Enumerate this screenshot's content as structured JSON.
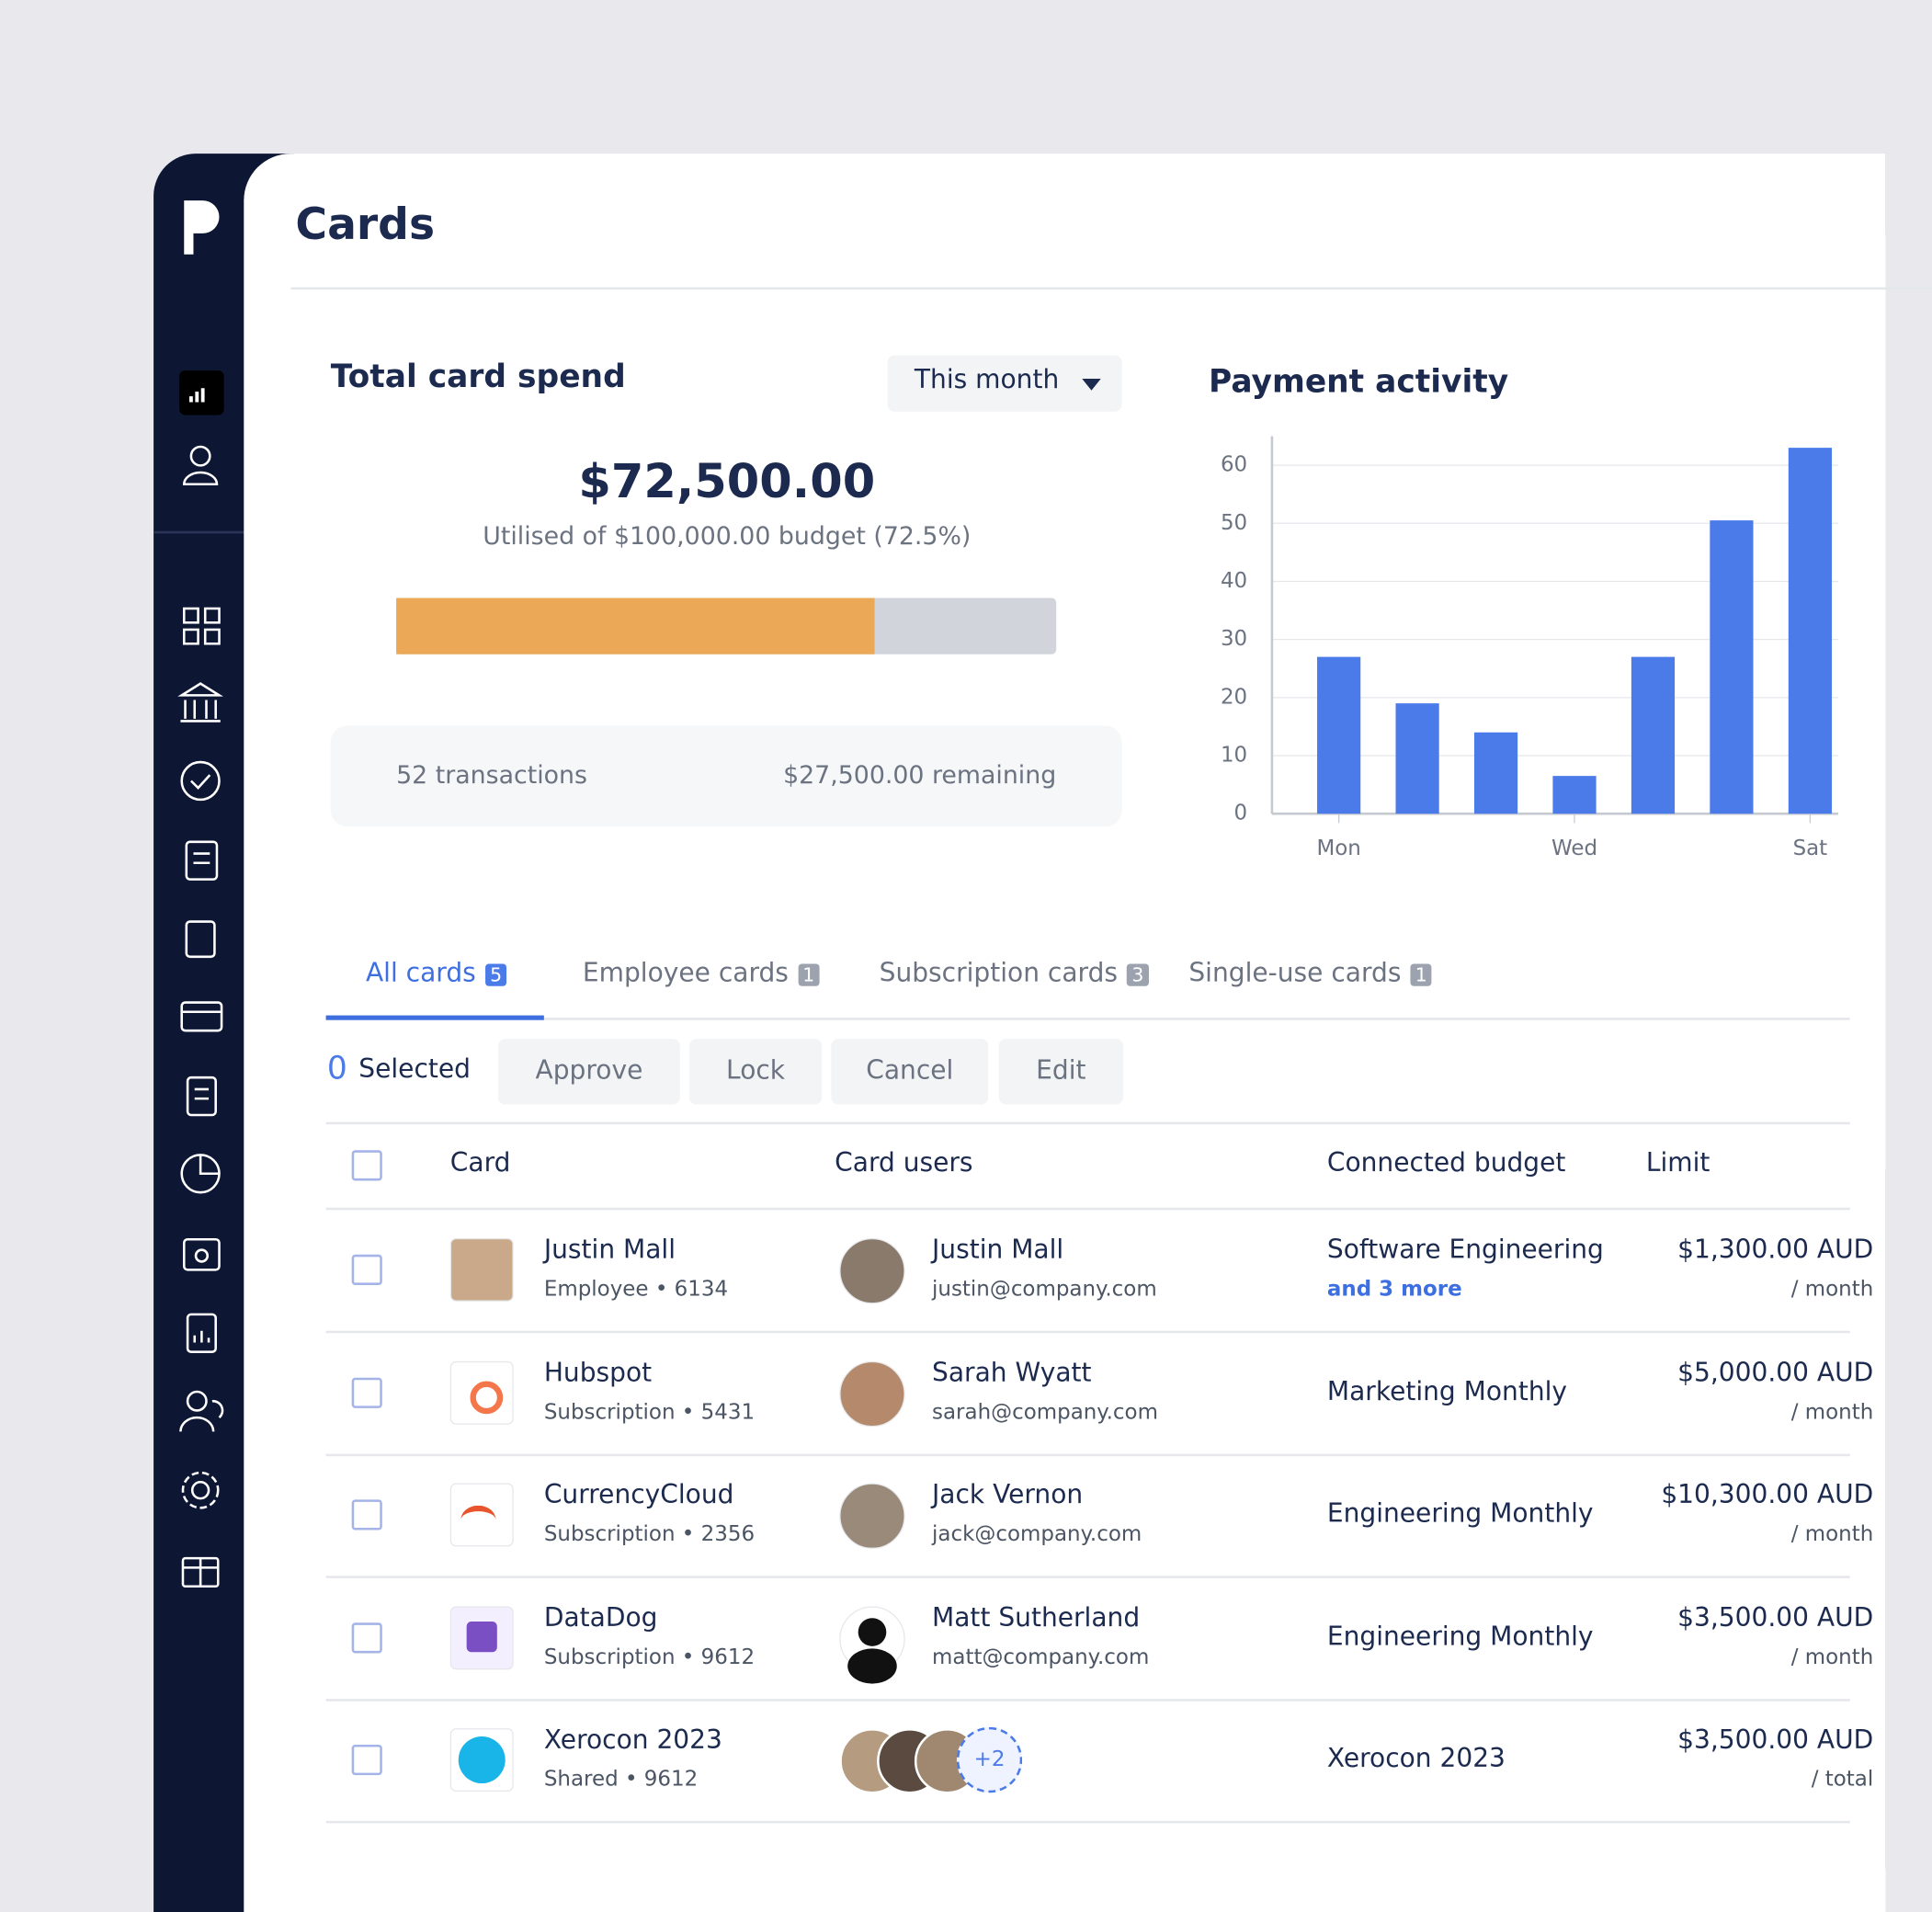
{
  "header": {
    "title": "Cards"
  },
  "spend": {
    "title": "Total card spend",
    "period": "This month",
    "total": "$72,500.00",
    "budget_note": "Utilised of $100,000.00 budget (72.5%)",
    "utilised_percent": 72.5,
    "transactions": "52 transactions",
    "remaining": "$27,500.00 remaining"
  },
  "chart_data": {
    "type": "bar",
    "title": "Payment activity",
    "categories": [
      "Mon",
      null,
      null,
      "Wed",
      null,
      null,
      "Sat"
    ],
    "values": [
      27,
      19,
      14,
      6.5,
      27,
      50.5,
      63
    ],
    "color": "#4a7be9",
    "ylim": [
      0,
      65
    ],
    "yticks": [
      0,
      10,
      20,
      30,
      40,
      50,
      60
    ],
    "grid": true
  },
  "tabs": [
    {
      "label": "All cards",
      "count": 5
    },
    {
      "label": "Employee cards",
      "count": 1
    },
    {
      "label": "Subscription cards",
      "count": 3
    },
    {
      "label": "Single-use cards",
      "count": 1
    }
  ],
  "toolbar": {
    "selected_count": 0,
    "selected_label": "Selected",
    "actions": [
      "Approve",
      "Lock",
      "Cancel",
      "Edit"
    ]
  },
  "table": {
    "columns": [
      "Card",
      "Card users",
      "Connected budget",
      "Limit"
    ],
    "rows": [
      {
        "card": "Justin Mall",
        "card_type": "Employee • 6134",
        "user": "Justin Mall",
        "email": "justin@company.com",
        "budget": "Software Engineering",
        "budget_more": "and 3 more",
        "limit": "$1,300.00 AUD",
        "period": "/ month"
      },
      {
        "card": "Hubspot",
        "card_type": "Subscription • 5431",
        "user": "Sarah Wyatt",
        "email": "sarah@company.com",
        "budget": "Marketing Monthly",
        "limit": "$5,000.00 AUD",
        "period": "/ month"
      },
      {
        "card": "CurrencyCloud",
        "card_type": "Subscription • 2356",
        "user": "Jack Vernon",
        "email": "jack@company.com",
        "budget": "Engineering Monthly",
        "limit": "$10,300.00 AUD",
        "period": "/ month"
      },
      {
        "card": "DataDog",
        "card_type": "Subscription • 9612",
        "user": "Matt Sutherland",
        "email": "matt@company.com",
        "budget": "Engineering Monthly",
        "limit": "$3,500.00 AUD",
        "period": "/ month"
      },
      {
        "card": "Xerocon 2023",
        "card_type": "Shared • 9612",
        "extra_users": "+2",
        "budget": "Xerocon 2023",
        "limit": "$3,500.00 AUD",
        "period": "/ total"
      }
    ]
  }
}
